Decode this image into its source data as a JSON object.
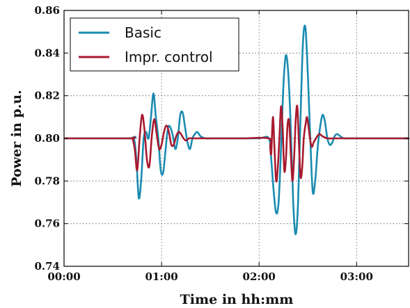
{
  "chart_data": {
    "type": "line",
    "title": "",
    "xlabel": "Time in hh:mm",
    "ylabel": "Power in p.u.",
    "xlim": [
      0,
      212
    ],
    "ylim": [
      0.74,
      0.86
    ],
    "x_ticks": [
      {
        "value": 0,
        "label": "00:00"
      },
      {
        "value": 60,
        "label": "01:00"
      },
      {
        "value": 120,
        "label": "02:00"
      },
      {
        "value": 180,
        "label": "03:00"
      }
    ],
    "y_ticks": [
      {
        "value": 0.74,
        "label": "0.74"
      },
      {
        "value": 0.76,
        "label": "0.76"
      },
      {
        "value": 0.78,
        "label": "0.78"
      },
      {
        "value": 0.8,
        "label": "0.80"
      },
      {
        "value": 0.82,
        "label": "0.82"
      },
      {
        "value": 0.84,
        "label": "0.84"
      },
      {
        "value": 0.86,
        "label": "0.86"
      }
    ],
    "grid": true,
    "legend_position": "top-left",
    "series": [
      {
        "name": "Basic",
        "color": "#1a8bb0",
        "x": [
          0,
          40,
          43,
          44.5,
          46,
          47.5,
          49,
          50.5,
          52,
          53.5,
          55,
          56.5,
          58,
          59.5,
          61,
          62.5,
          64,
          65.5,
          67,
          68.5,
          70,
          71.5,
          73,
          74.5,
          76,
          77.5,
          79,
          80.5,
          82,
          84,
          87,
          92,
          100,
          110,
          120,
          126,
          127.5,
          129,
          130.5,
          132,
          133.5,
          135,
          136.5,
          138,
          139.5,
          141,
          142.5,
          144,
          145.5,
          147,
          148.5,
          150,
          151.5,
          153,
          154.5,
          156,
          157.5,
          159,
          160.5,
          162,
          163.5,
          165,
          166.5,
          168,
          170,
          172,
          175,
          180,
          212
        ],
        "y": [
          0.8,
          0.8,
          0.8,
          0.79,
          0.772,
          0.781,
          0.8,
          0.803,
          0.8,
          0.81,
          0.821,
          0.81,
          0.8,
          0.785,
          0.784,
          0.795,
          0.805,
          0.805,
          0.801,
          0.795,
          0.8,
          0.811,
          0.812,
          0.805,
          0.798,
          0.795,
          0.8,
          0.802,
          0.803,
          0.801,
          0.8,
          0.8,
          0.8,
          0.8,
          0.8,
          0.8,
          0.79,
          0.775,
          0.765,
          0.77,
          0.795,
          0.825,
          0.839,
          0.83,
          0.805,
          0.77,
          0.755,
          0.77,
          0.81,
          0.845,
          0.852,
          0.83,
          0.8,
          0.775,
          0.78,
          0.795,
          0.805,
          0.811,
          0.808,
          0.8,
          0.797,
          0.798,
          0.801,
          0.802,
          0.801,
          0.8,
          0.8,
          0.8,
          0.8
        ]
      },
      {
        "name": "Impr. control",
        "color": "#a8192e",
        "x": [
          0,
          40,
          42,
          43.5,
          45,
          46.5,
          48,
          49.5,
          51,
          52.5,
          54,
          55.5,
          57,
          58.5,
          60,
          61.5,
          63,
          64.5,
          66,
          67.5,
          69,
          70.5,
          72,
          73.5,
          75,
          77,
          80,
          85,
          95,
          110,
          126,
          126.8,
          127.5,
          128.5,
          129.5,
          130.5,
          131.5,
          132.5,
          133.5,
          134.5,
          135.5,
          136.5,
          137.5,
          138.5,
          139.5,
          140.5,
          141.5,
          142.5,
          143.5,
          144.5,
          145.5,
          146.5,
          147.5,
          148.5,
          149.5,
          150.5,
          151.5,
          152.5,
          153.5,
          155,
          157,
          159,
          162,
          166,
          172,
          180,
          212
        ],
        "y": [
          0.8,
          0.8,
          0.8,
          0.795,
          0.785,
          0.8,
          0.811,
          0.804,
          0.79,
          0.787,
          0.801,
          0.809,
          0.802,
          0.795,
          0.797,
          0.803,
          0.806,
          0.803,
          0.797,
          0.797,
          0.801,
          0.803,
          0.802,
          0.8,
          0.799,
          0.8,
          0.8,
          0.8,
          0.8,
          0.8,
          0.8,
          0.796,
          0.793,
          0.81,
          0.795,
          0.78,
          0.786,
          0.8,
          0.815,
          0.805,
          0.785,
          0.79,
          0.806,
          0.808,
          0.793,
          0.78,
          0.79,
          0.808,
          0.815,
          0.798,
          0.782,
          0.786,
          0.8,
          0.806,
          0.81,
          0.805,
          0.799,
          0.796,
          0.798,
          0.8,
          0.802,
          0.801,
          0.8,
          0.8,
          0.8,
          0.8,
          0.8
        ]
      }
    ]
  }
}
